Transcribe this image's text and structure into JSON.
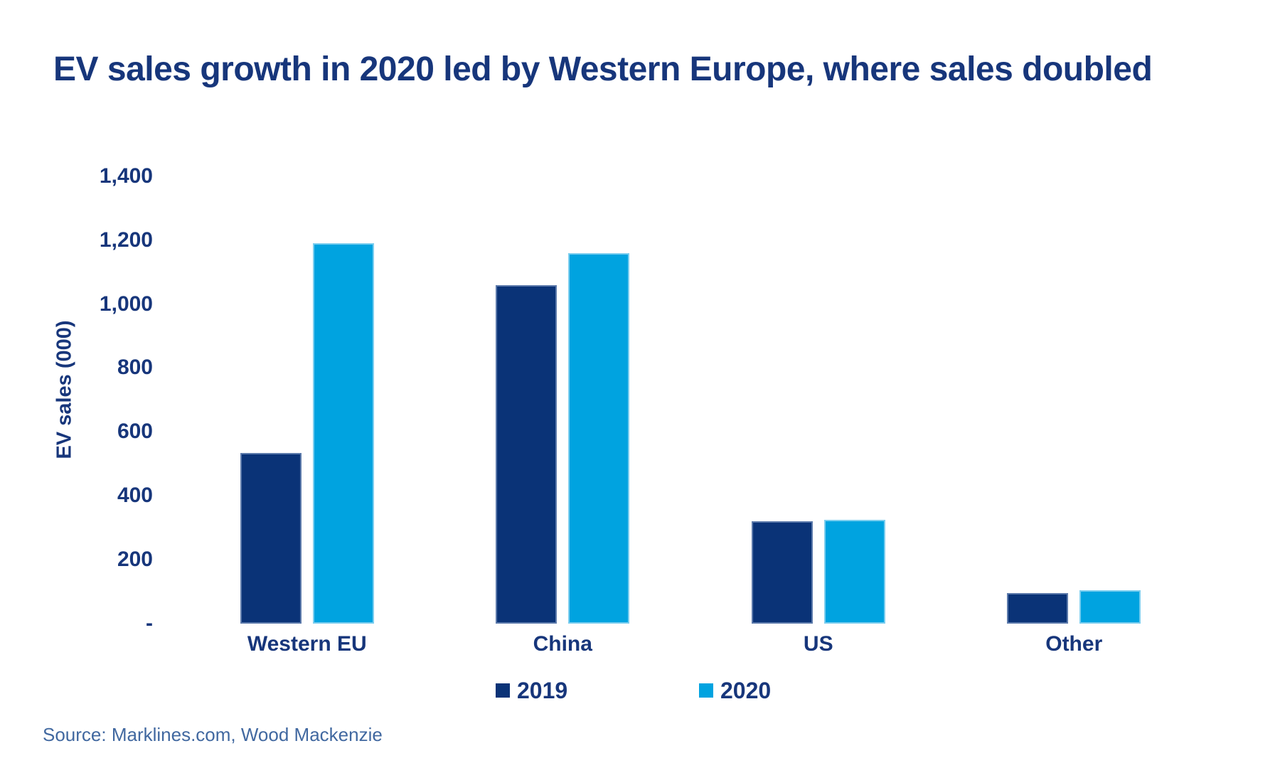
{
  "chart_data": {
    "type": "bar",
    "title": "EV sales growth in 2020 led by Western Europe, where sales doubled",
    "ylabel": "EV sales (000)",
    "xlabel": "",
    "categories": [
      "Western EU",
      "China",
      "US",
      "Other"
    ],
    "series": [
      {
        "name": "2019",
        "color": "#0a3377",
        "values": [
          535,
          1060,
          320,
          95
        ]
      },
      {
        "name": "2020",
        "color": "#00a3e0",
        "values": [
          1190,
          1160,
          325,
          105
        ]
      }
    ],
    "ylim": [
      0,
      1400
    ],
    "yticks": [
      {
        "label": "1,400",
        "value": 1400
      },
      {
        "label": "1,200",
        "value": 1200
      },
      {
        "label": "1,000",
        "value": 1000
      },
      {
        "label": "800",
        "value": 800
      },
      {
        "label": "600",
        "value": 600
      },
      {
        "label": "400",
        "value": 400
      },
      {
        "label": "200",
        "value": 200
      },
      {
        "label": "-",
        "value": 0
      }
    ],
    "grid": false,
    "legend_position": "bottom"
  },
  "source_note": "Source: Marklines.com, Wood Mackenzie",
  "colors": {
    "title_text": "#17367b",
    "axis_text": "#17367b",
    "source_text": "#4168a0",
    "background": "#ffffff"
  }
}
